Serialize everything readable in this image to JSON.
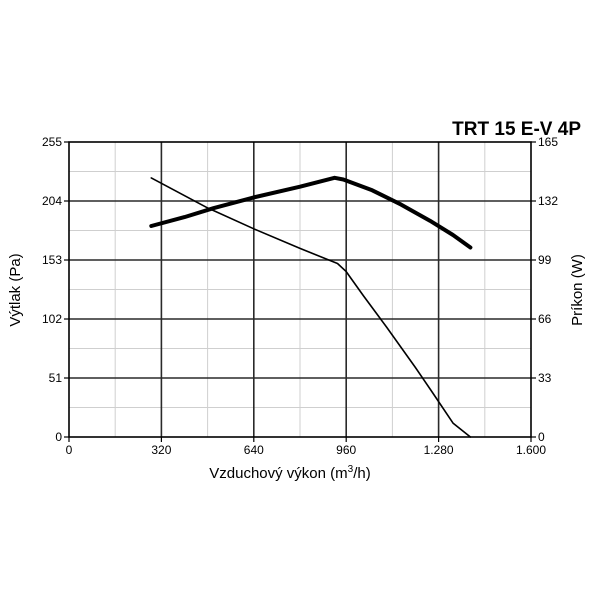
{
  "chart_data": {
    "type": "line",
    "title": "TRT 15 E-V 4P",
    "xlabel": "Vzduchový výkon (m3/h)",
    "xlabel_main": "Vzduchový výkon (m",
    "xlabel_sup": "3",
    "xlabel_end": "/h)",
    "ylabel_left": "Výtlak (Pa)",
    "ylabel_right": "Príkon (W)",
    "xlim": [
      0,
      1600
    ],
    "ylim_left": [
      0,
      255
    ],
    "ylim_right": [
      0,
      165
    ],
    "x_ticks": [
      {
        "value": 0,
        "label": "0"
      },
      {
        "value": 320,
        "label": "320"
      },
      {
        "value": 640,
        "label": "640"
      },
      {
        "value": 960,
        "label": "960"
      },
      {
        "value": 1280,
        "label": "1.280"
      },
      {
        "value": 1600,
        "label": "1.600"
      }
    ],
    "y_left_ticks": [
      {
        "value": 0,
        "label": "0"
      },
      {
        "value": 51,
        "label": "51"
      },
      {
        "value": 102,
        "label": "102"
      },
      {
        "value": 153,
        "label": "153"
      },
      {
        "value": 204,
        "label": "204"
      },
      {
        "value": 255,
        "label": "255"
      }
    ],
    "y_right_ticks": [
      {
        "value": 0,
        "label": "0"
      },
      {
        "value": 33,
        "label": "33"
      },
      {
        "value": 66,
        "label": "66"
      },
      {
        "value": 99,
        "label": "99"
      },
      {
        "value": 132,
        "label": "132"
      },
      {
        "value": 165,
        "label": "165"
      }
    ],
    "grid": true,
    "series": [
      {
        "axis": "left",
        "color": "#000000",
        "weight": "thin",
        "x": [
          285,
          480,
          640,
          800,
          930,
          960,
          1020,
          1100,
          1200,
          1260,
          1330,
          1390
        ],
        "y": [
          224,
          198,
          180,
          163,
          150,
          143,
          122,
          95,
          60,
          38,
          12,
          0
        ]
      },
      {
        "axis": "right",
        "color": "#000000",
        "weight": "bold",
        "x": [
          285,
          400,
          500,
          640,
          800,
          920,
          950,
          1050,
          1150,
          1250,
          1330,
          1390
        ],
        "y": [
          118,
          123,
          128,
          134,
          140,
          145,
          144,
          138,
          130,
          121,
          113,
          106
        ]
      }
    ]
  }
}
